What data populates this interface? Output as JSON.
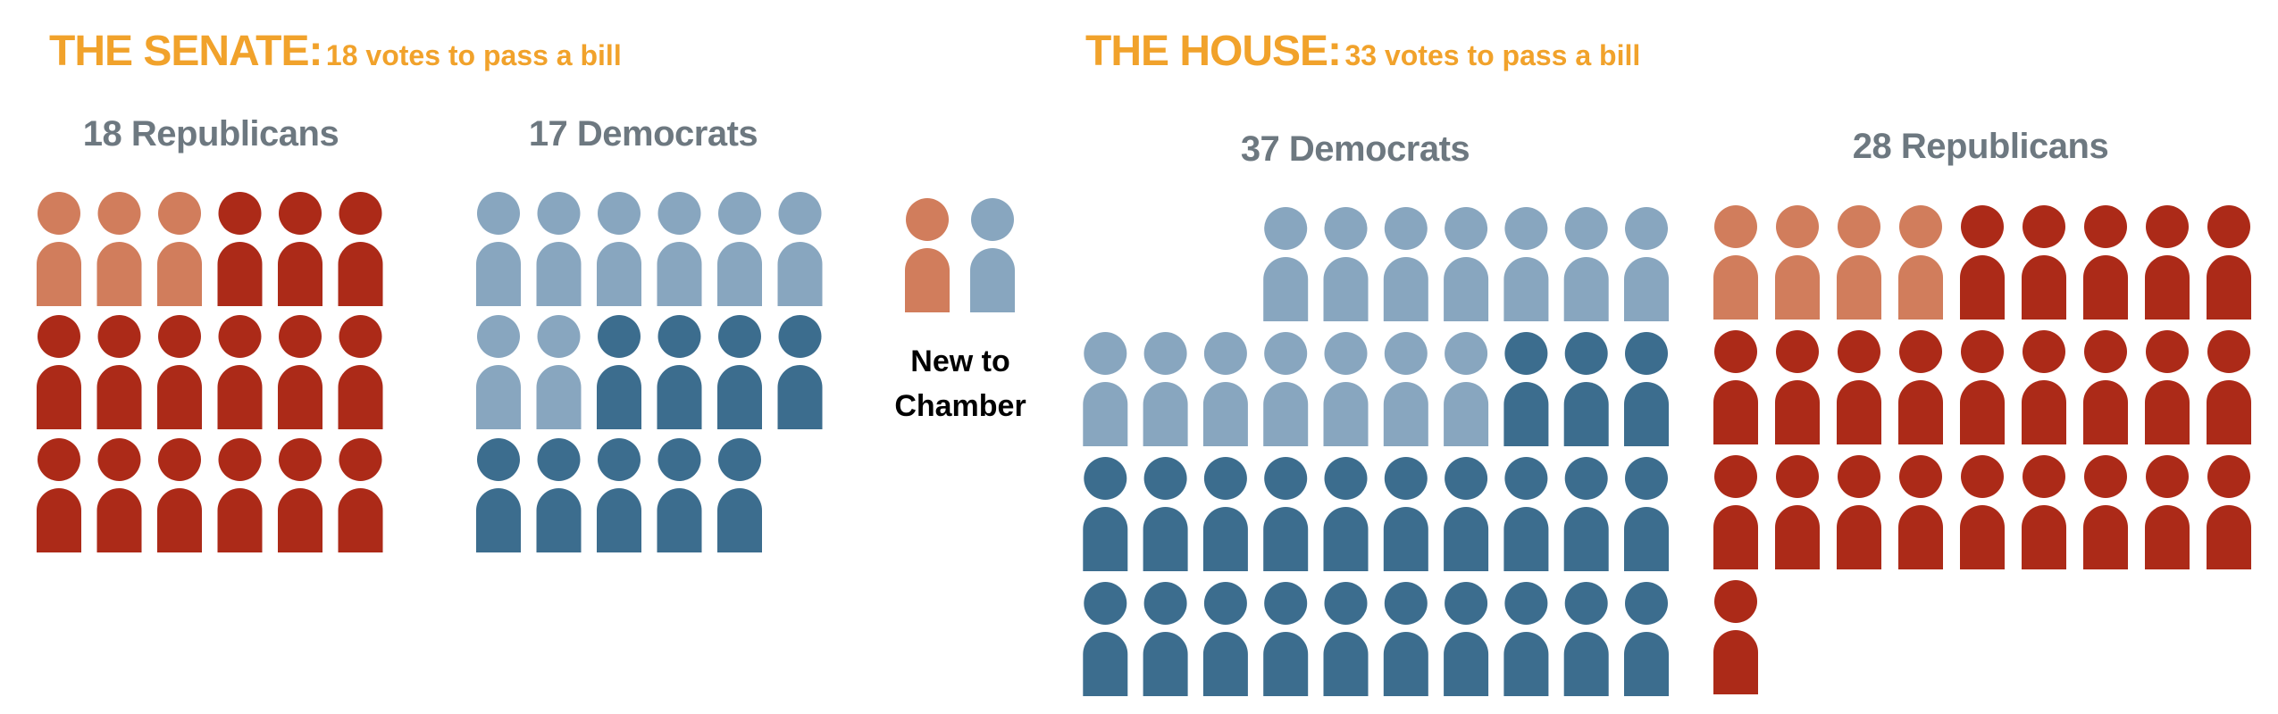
{
  "senate": {
    "title": "THE SENATE:",
    "subtitle": "18 votes to pass a bill"
  },
  "house": {
    "title": "THE HOUSE:",
    "subtitle": "33 votes to pass a bill"
  },
  "legend": {
    "label_line1": "New to",
    "label_line2": "Chamber"
  },
  "colors": {
    "rep_new": "#d17d5c",
    "rep_returning": "#ac2a18",
    "dem_new": "#88a6bf",
    "dem_returning": "#3c6d8e"
  },
  "chart_data": [
    {
      "type": "pictograph",
      "title": "THE SENATE:",
      "subtitle": "18 votes to pass a bill",
      "groups": [
        {
          "label": "18 Republicans",
          "party": "Republican",
          "total": 18,
          "new": 3,
          "returning": 15
        },
        {
          "label": "17 Democrats",
          "party": "Democrat",
          "total": 17,
          "new": 8,
          "returning": 9
        }
      ]
    },
    {
      "type": "pictograph",
      "title": "THE HOUSE:",
      "subtitle": "33 votes to pass a bill",
      "groups": [
        {
          "label": "37 Democrats",
          "party": "Democrat",
          "total": 37,
          "new": 14,
          "returning": 23
        },
        {
          "label": "28 Republicans",
          "party": "Republican",
          "total": 28,
          "new": 4,
          "returning": 24
        }
      ]
    }
  ]
}
